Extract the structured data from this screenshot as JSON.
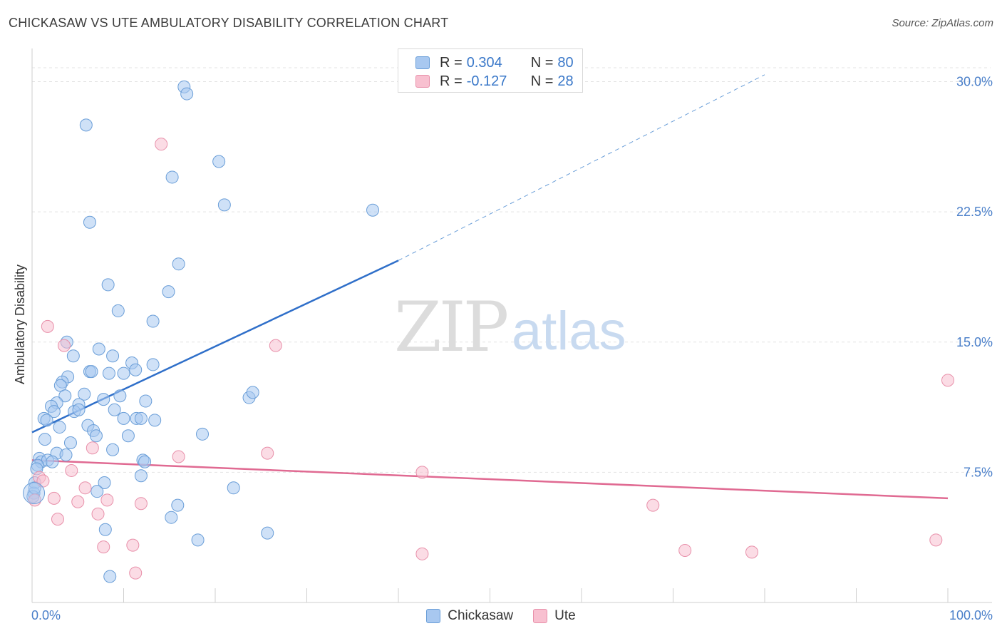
{
  "title": "CHICKASAW VS UTE AMBULATORY DISABILITY CORRELATION CHART",
  "source": "Source: ZipAtlas.com",
  "watermark": {
    "zip": "ZIP",
    "atlas": "atlas"
  },
  "legend": {
    "rows": [
      {
        "r_label": "R = ",
        "r_value": "0.304",
        "n_label": "N = ",
        "n_value": "80",
        "color": "#a8c8f0",
        "border": "#6a9ed8"
      },
      {
        "r_label": "R = ",
        "r_value": "-0.127",
        "n_label": "N = ",
        "n_value": "28",
        "color": "#f8c0d0",
        "border": "#e890aa"
      }
    ]
  },
  "chart_data": {
    "type": "scatter",
    "title": "CHICKASAW VS UTE AMBULATORY DISABILITY CORRELATION CHART",
    "xlabel": "",
    "ylabel": "Ambulatory Disability",
    "xlim": [
      0,
      100
    ],
    "ylim": [
      0,
      31.5
    ],
    "x_tick_labels": [
      "0.0%",
      "100.0%"
    ],
    "y_ticks": [
      7.5,
      15.0,
      22.5,
      30.0
    ],
    "y_tick_labels": [
      "7.5%",
      "15.0%",
      "22.5%",
      "30.0%"
    ],
    "grid": true,
    "legend_position": "top-center",
    "series": [
      {
        "name": "Chickasaw",
        "color": "#6a9ed8",
        "fill": "#a8c8f0",
        "trend": {
          "x": [
            0,
            40
          ],
          "y": [
            9.8,
            19.7
          ],
          "dashed_to": [
            80,
            30.4
          ]
        },
        "points": [
          [
            16.6,
            29.7
          ],
          [
            16.9,
            29.3
          ],
          [
            5.9,
            27.5
          ],
          [
            20.4,
            25.4
          ],
          [
            15.3,
            24.5
          ],
          [
            21.0,
            22.9
          ],
          [
            37.2,
            22.6
          ],
          [
            6.3,
            21.9
          ],
          [
            16.0,
            19.5
          ],
          [
            8.3,
            18.3
          ],
          [
            14.9,
            17.9
          ],
          [
            9.4,
            16.8
          ],
          [
            13.2,
            16.2
          ],
          [
            3.8,
            15.0
          ],
          [
            7.3,
            14.6
          ],
          [
            4.5,
            14.2
          ],
          [
            8.8,
            14.2
          ],
          [
            10.9,
            13.8
          ],
          [
            13.2,
            13.7
          ],
          [
            11.3,
            13.4
          ],
          [
            6.3,
            13.3
          ],
          [
            6.5,
            13.3
          ],
          [
            8.4,
            13.2
          ],
          [
            10.0,
            13.2
          ],
          [
            3.9,
            13.0
          ],
          [
            3.3,
            12.7
          ],
          [
            3.1,
            12.5
          ],
          [
            5.7,
            12.0
          ],
          [
            3.6,
            11.9
          ],
          [
            9.6,
            11.9
          ],
          [
            7.8,
            11.7
          ],
          [
            12.4,
            11.6
          ],
          [
            23.7,
            11.8
          ],
          [
            24.1,
            12.1
          ],
          [
            2.7,
            11.5
          ],
          [
            5.1,
            11.4
          ],
          [
            2.1,
            11.3
          ],
          [
            4.6,
            11.0
          ],
          [
            2.4,
            11.0
          ],
          [
            5.1,
            11.1
          ],
          [
            9.0,
            11.1
          ],
          [
            10.0,
            10.6
          ],
          [
            11.4,
            10.6
          ],
          [
            11.9,
            10.6
          ],
          [
            13.4,
            10.5
          ],
          [
            1.3,
            10.6
          ],
          [
            1.6,
            10.5
          ],
          [
            3.0,
            10.1
          ],
          [
            6.1,
            10.2
          ],
          [
            6.7,
            9.9
          ],
          [
            7.0,
            9.6
          ],
          [
            10.5,
            9.6
          ],
          [
            18.6,
            9.7
          ],
          [
            1.4,
            9.4
          ],
          [
            4.2,
            9.2
          ],
          [
            8.8,
            8.8
          ],
          [
            2.7,
            8.6
          ],
          [
            3.7,
            8.5
          ],
          [
            0.8,
            8.3
          ],
          [
            1.0,
            8.1
          ],
          [
            1.7,
            8.2
          ],
          [
            0.6,
            7.9
          ],
          [
            2.2,
            8.1
          ],
          [
            12.1,
            8.2
          ],
          [
            12.3,
            8.1
          ],
          [
            0.5,
            7.7
          ],
          [
            11.9,
            7.3
          ],
          [
            7.9,
            6.9
          ],
          [
            0.3,
            6.9
          ],
          [
            22.0,
            6.6
          ],
          [
            7.1,
            6.4
          ],
          [
            15.9,
            5.6
          ],
          [
            15.2,
            4.9
          ],
          [
            8.0,
            4.2
          ],
          [
            18.1,
            3.6
          ],
          [
            25.7,
            4.0
          ],
          [
            8.5,
            1.5
          ],
          [
            0.2,
            6.3
          ],
          [
            0.1,
            6.1
          ],
          [
            0.3,
            6.6
          ]
        ]
      },
      {
        "name": "Ute",
        "color": "#e890aa",
        "fill": "#f8c0d0",
        "trend": {
          "x": [
            0,
            100
          ],
          "y": [
            8.2,
            6.0
          ]
        },
        "points": [
          [
            14.1,
            26.4
          ],
          [
            1.7,
            15.9
          ],
          [
            26.6,
            14.8
          ],
          [
            3.5,
            14.8
          ],
          [
            100.0,
            12.8
          ],
          [
            6.6,
            8.9
          ],
          [
            16.0,
            8.4
          ],
          [
            25.7,
            8.6
          ],
          [
            4.3,
            7.6
          ],
          [
            42.6,
            7.5
          ],
          [
            0.8,
            7.2
          ],
          [
            1.2,
            7.0
          ],
          [
            5.8,
            6.6
          ],
          [
            2.4,
            6.0
          ],
          [
            8.2,
            5.9
          ],
          [
            5.0,
            5.8
          ],
          [
            11.9,
            5.7
          ],
          [
            67.8,
            5.6
          ],
          [
            0.3,
            5.9
          ],
          [
            7.2,
            5.1
          ],
          [
            2.8,
            4.8
          ],
          [
            98.7,
            3.6
          ],
          [
            7.8,
            3.2
          ],
          [
            11.0,
            3.3
          ],
          [
            71.3,
            3.0
          ],
          [
            78.6,
            2.9
          ],
          [
            42.6,
            2.8
          ],
          [
            11.3,
            1.7
          ]
        ]
      }
    ]
  }
}
